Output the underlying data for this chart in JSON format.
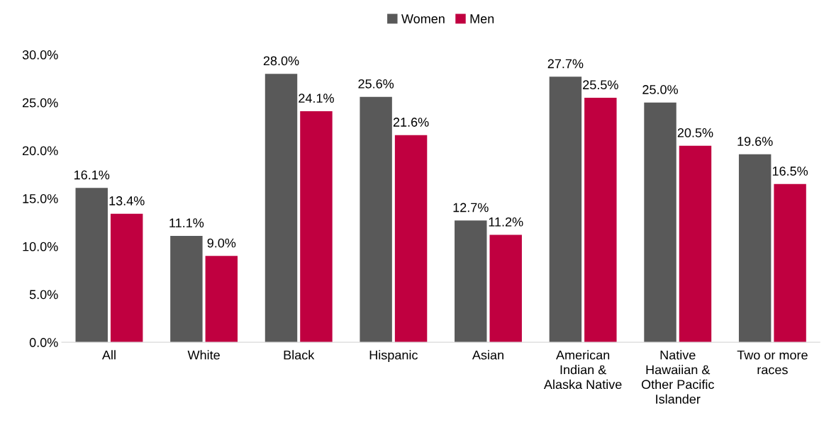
{
  "chart_data": {
    "type": "bar",
    "categories": [
      "All",
      "White",
      "Black",
      "Hispanic",
      "Asian",
      "American\nIndian &\nAlaska Native",
      "Native\nHawaiian &\nOther Pacific\nIslander",
      "Two or more\nraces"
    ],
    "series": [
      {
        "name": "Women",
        "color": "#595959",
        "values": [
          16.1,
          11.1,
          28.0,
          25.6,
          12.7,
          27.7,
          25.0,
          19.6
        ],
        "value_labels": [
          "16.1%",
          "11.1%",
          "28.0%",
          "25.6%",
          "12.7%",
          "27.7%",
          "25.0%",
          "19.6%"
        ]
      },
      {
        "name": "Men",
        "color": "#c00040",
        "values": [
          13.4,
          9.0,
          24.1,
          21.6,
          11.2,
          25.5,
          20.5,
          16.5
        ],
        "value_labels": [
          "13.4%",
          "9.0%",
          "24.1%",
          "21.6%",
          "11.2%",
          "25.5%",
          "20.5%",
          "16.5%"
        ]
      }
    ],
    "ylim": [
      0,
      30
    ],
    "yticks": [
      {
        "value": 0,
        "label": "0.0%"
      },
      {
        "value": 5,
        "label": "5.0%"
      },
      {
        "value": 10,
        "label": "10.0%"
      },
      {
        "value": 15,
        "label": "15.0%"
      },
      {
        "value": 20,
        "label": "20.0%"
      },
      {
        "value": 25,
        "label": "25.0%"
      },
      {
        "value": 30,
        "label": "30.0%"
      }
    ],
    "grid": false,
    "legend": "top"
  }
}
